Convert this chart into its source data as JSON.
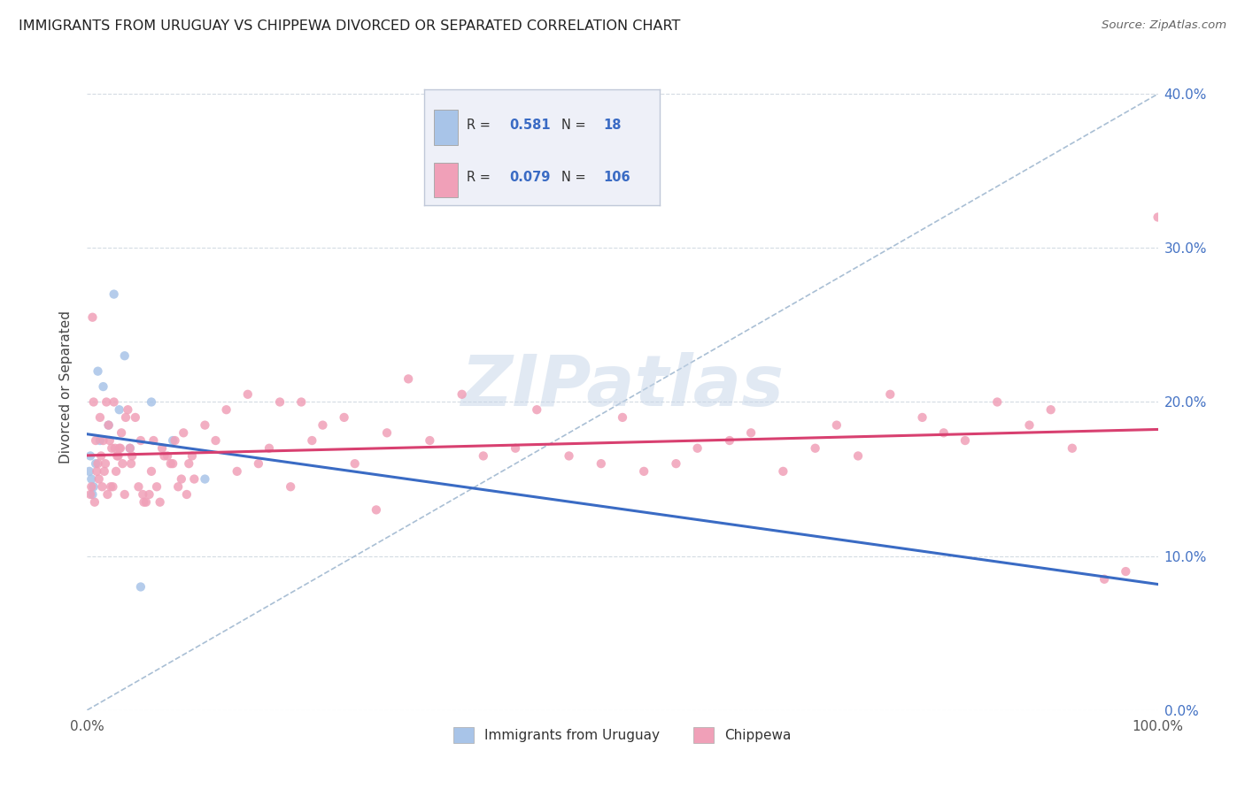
{
  "title": "IMMIGRANTS FROM URUGUAY VS CHIPPEWA DIVORCED OR SEPARATED CORRELATION CHART",
  "source": "Source: ZipAtlas.com",
  "ylabel": "Divorced or Separated",
  "watermark": "ZIPatlas",
  "series": [
    {
      "name": "Immigrants from Uruguay",
      "R": 0.581,
      "N": 18,
      "color": "#a8c4e8",
      "line_color": "#3a6bc4",
      "x": [
        0.2,
        0.3,
        0.4,
        0.5,
        0.6,
        0.8,
        1.0,
        1.2,
        1.5,
        2.0,
        2.5,
        3.0,
        3.5,
        4.0,
        5.0,
        6.0,
        8.0,
        11.0
      ],
      "y": [
        15.5,
        16.5,
        15.0,
        14.0,
        14.5,
        16.0,
        22.0,
        17.5,
        21.0,
        18.5,
        27.0,
        19.5,
        23.0,
        17.0,
        8.0,
        20.0,
        17.5,
        15.0
      ]
    },
    {
      "name": "Chippewa",
      "R": 0.079,
      "N": 106,
      "color": "#f0a0b8",
      "line_color": "#d84070",
      "x": [
        0.5,
        0.8,
        1.0,
        1.2,
        1.5,
        1.8,
        2.0,
        2.2,
        2.5,
        2.8,
        3.0,
        3.2,
        3.5,
        3.8,
        4.0,
        4.2,
        4.5,
        5.0,
        5.2,
        5.5,
        6.0,
        6.5,
        7.0,
        7.5,
        8.0,
        8.5,
        9.0,
        9.5,
        10.0,
        11.0,
        12.0,
        13.0,
        14.0,
        15.0,
        16.0,
        17.0,
        18.0,
        19.0,
        20.0,
        21.0,
        22.0,
        24.0,
        25.0,
        27.0,
        28.0,
        30.0,
        32.0,
        35.0,
        37.0,
        40.0,
        42.0,
        45.0,
        48.0,
        50.0,
        52.0,
        55.0,
        57.0,
        60.0,
        62.0,
        65.0,
        68.0,
        70.0,
        72.0,
        75.0,
        78.0,
        80.0,
        82.0,
        85.0,
        88.0,
        90.0,
        92.0,
        95.0,
        97.0,
        100.0,
        0.3,
        0.4,
        0.6,
        0.7,
        0.9,
        1.1,
        1.3,
        1.4,
        1.6,
        1.7,
        1.9,
        2.1,
        2.3,
        2.4,
        2.6,
        2.7,
        2.9,
        3.1,
        3.3,
        3.6,
        4.1,
        4.8,
        5.3,
        5.8,
        6.2,
        6.8,
        7.2,
        7.8,
        8.2,
        8.8,
        9.3,
        9.8
      ],
      "y": [
        25.5,
        17.5,
        16.0,
        19.0,
        17.5,
        20.0,
        18.5,
        14.5,
        20.0,
        16.5,
        17.0,
        18.0,
        14.0,
        19.5,
        17.0,
        16.5,
        19.0,
        17.5,
        14.0,
        13.5,
        15.5,
        14.5,
        17.0,
        16.5,
        16.0,
        14.5,
        18.0,
        16.0,
        15.0,
        18.5,
        17.5,
        19.5,
        15.5,
        20.5,
        16.0,
        17.0,
        20.0,
        14.5,
        20.0,
        17.5,
        18.5,
        19.0,
        16.0,
        13.0,
        18.0,
        21.5,
        17.5,
        20.5,
        16.5,
        17.0,
        19.5,
        16.5,
        16.0,
        19.0,
        15.5,
        16.0,
        17.0,
        17.5,
        18.0,
        15.5,
        17.0,
        18.5,
        16.5,
        20.5,
        19.0,
        18.0,
        17.5,
        20.0,
        18.5,
        19.5,
        17.0,
        8.5,
        9.0,
        32.0,
        14.0,
        14.5,
        20.0,
        13.5,
        15.5,
        15.0,
        16.5,
        14.5,
        15.5,
        16.0,
        14.0,
        17.5,
        17.0,
        14.5,
        17.0,
        15.5,
        16.5,
        17.0,
        16.0,
        19.0,
        16.0,
        14.5,
        13.5,
        14.0,
        17.5,
        13.5,
        16.5,
        16.0,
        17.5,
        15.0,
        14.0,
        16.5
      ]
    }
  ],
  "xlim": [
    0,
    100
  ],
  "ylim": [
    0,
    42
  ],
  "yticks": [
    0,
    10,
    20,
    30,
    40
  ],
  "ytick_labels": [
    "0.0%",
    "10.0%",
    "20.0%",
    "30.0%",
    "40.0%"
  ],
  "xtick_labels": [
    "0.0%",
    "100.0%"
  ],
  "background_color": "#ffffff",
  "grid_color": "#d0d8e0",
  "legend_bg": "#eef0f8",
  "legend_border": "#c0c8d8"
}
